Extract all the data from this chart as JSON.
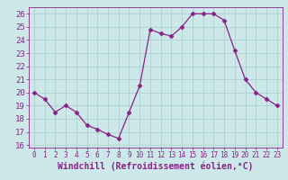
{
  "x": [
    0,
    1,
    2,
    3,
    4,
    5,
    6,
    7,
    8,
    9,
    10,
    11,
    12,
    13,
    14,
    15,
    16,
    17,
    18,
    19,
    20,
    21,
    22,
    23
  ],
  "y": [
    20,
    19.5,
    18.5,
    19,
    18.5,
    17.5,
    17.2,
    16.8,
    16.5,
    18.5,
    20.5,
    24.8,
    24.5,
    24.3,
    25,
    26,
    26,
    26,
    25.5,
    23.2,
    21,
    20,
    19.5,
    19
  ],
  "line_color": "#882288",
  "marker": "D",
  "marker_size": 2.5,
  "bg_color": "#cce8e8",
  "grid_color": "#aacccc",
  "xlabel": "Windchill (Refroidissement éolien,°C)",
  "xlabel_fontsize": 7,
  "tick_fontsize": 6.5,
  "ylim": [
    15.8,
    26.5
  ],
  "xlim": [
    -0.5,
    23.5
  ],
  "yticks": [
    16,
    17,
    18,
    19,
    20,
    21,
    22,
    23,
    24,
    25,
    26
  ],
  "xticks": [
    0,
    1,
    2,
    3,
    4,
    5,
    6,
    7,
    8,
    9,
    10,
    11,
    12,
    13,
    14,
    15,
    16,
    17,
    18,
    19,
    20,
    21,
    22,
    23
  ]
}
